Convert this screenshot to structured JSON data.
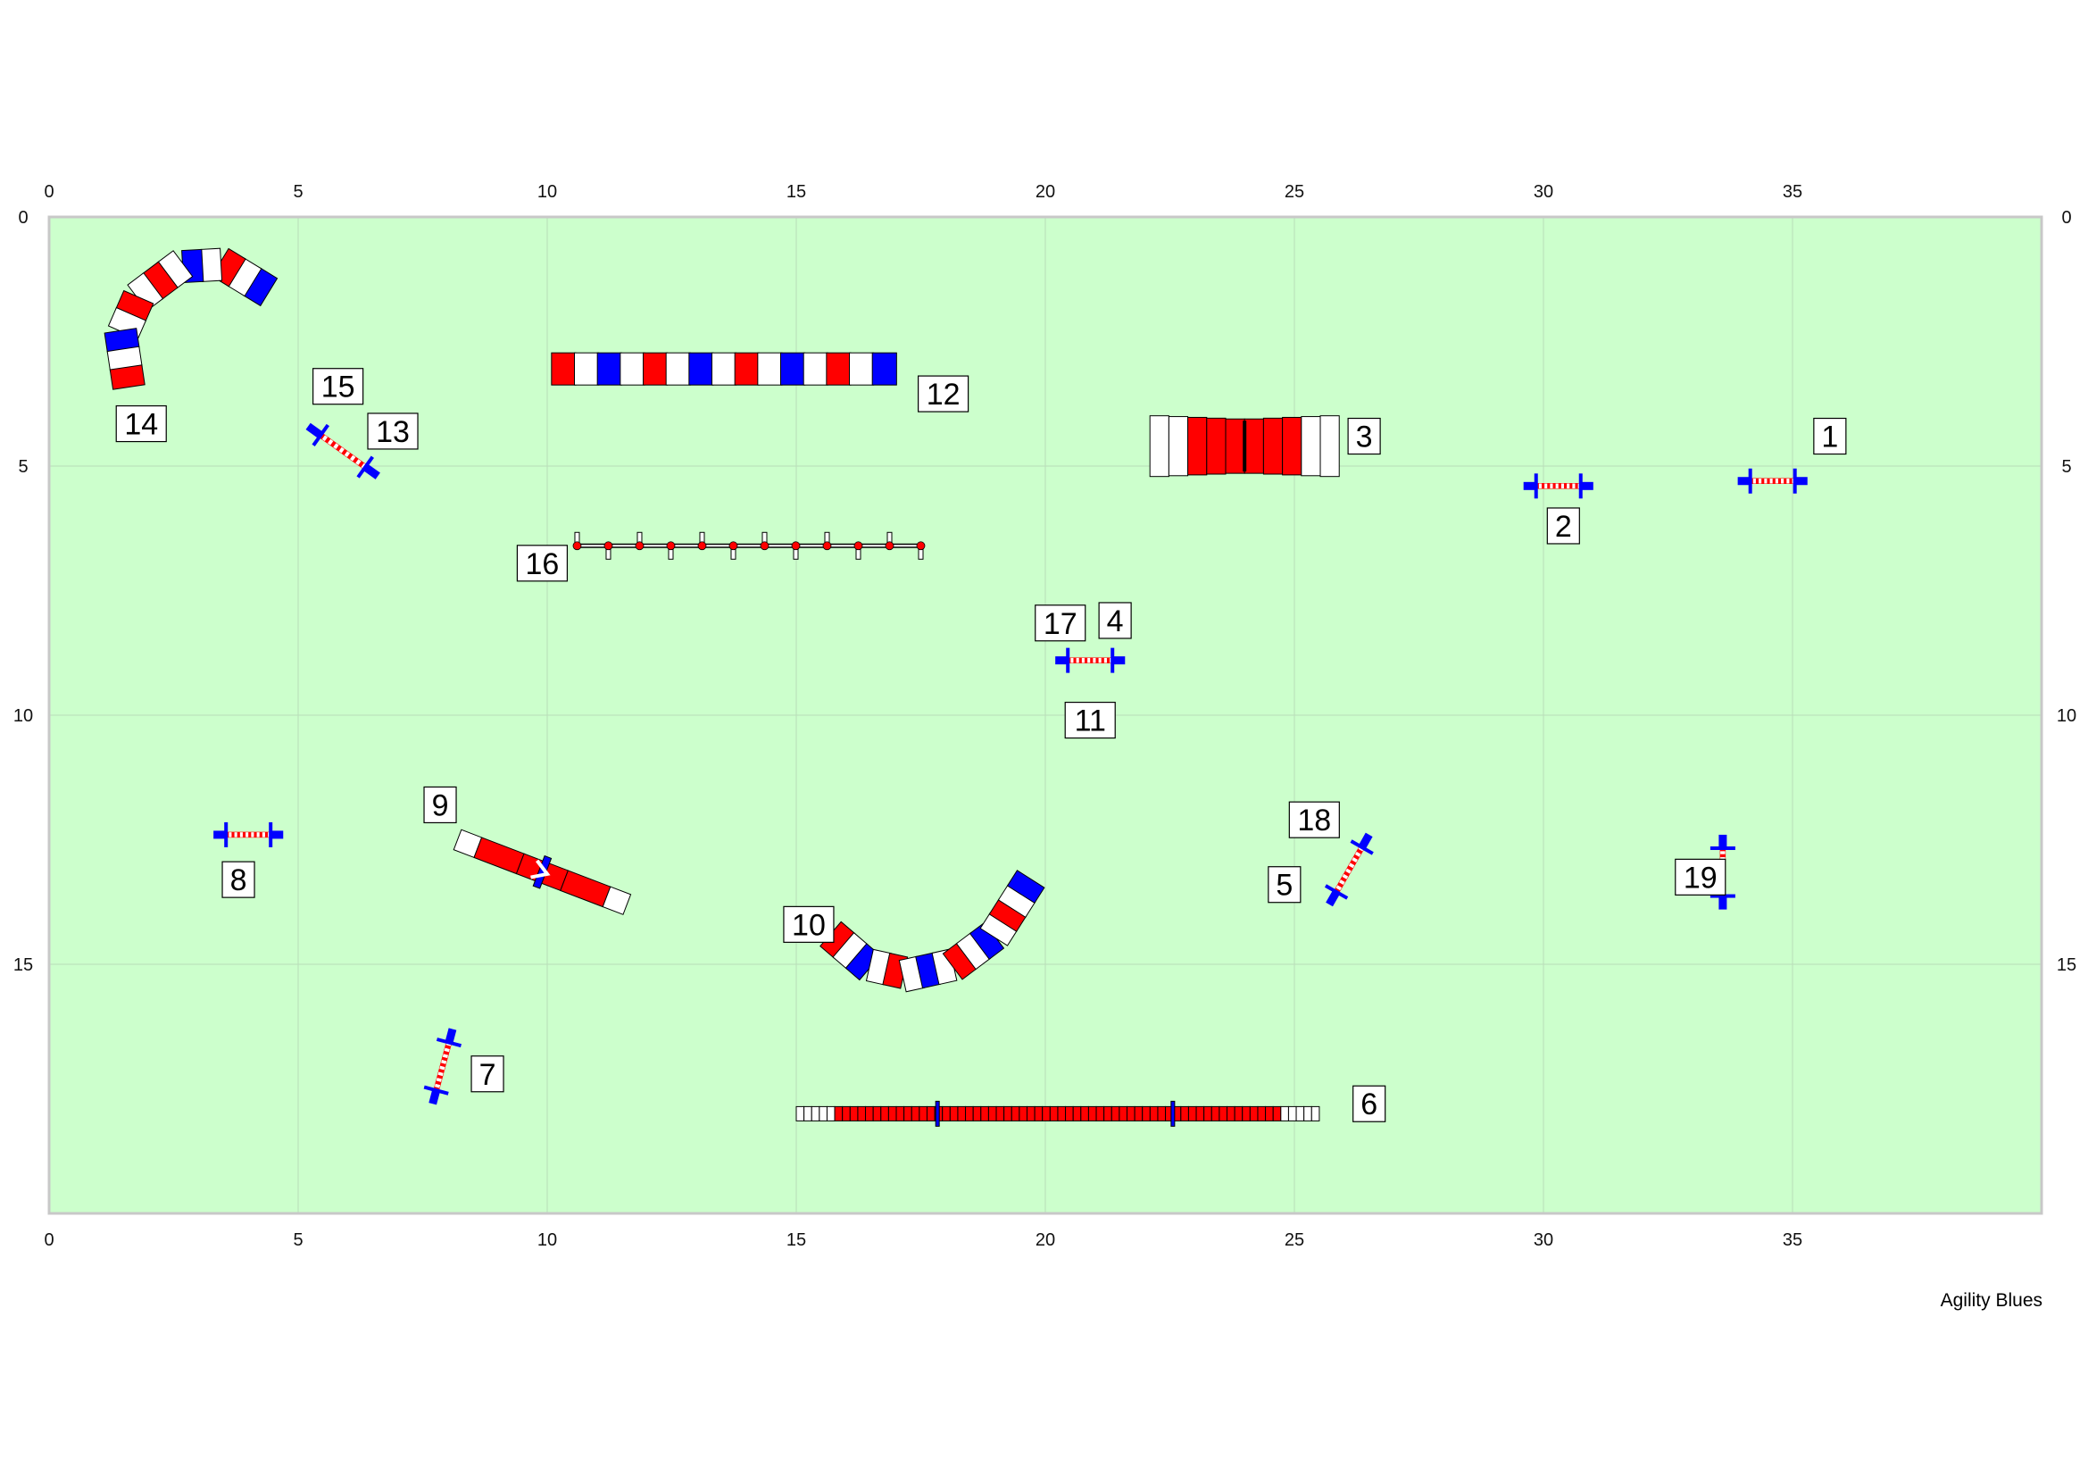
{
  "field": {
    "x_range": [
      0,
      40
    ],
    "y_range": [
      0,
      20
    ],
    "x_ticks": [
      0,
      5,
      10,
      15,
      20,
      25,
      30,
      35
    ],
    "y_ticks": [
      0,
      5,
      10,
      15
    ],
    "colors": {
      "field": "#ccffcc",
      "border": "#c8c8c8",
      "grid": "#b9dcb9",
      "red": "#ff0000",
      "blue": "#0000ff",
      "white": "#ffffff"
    }
  },
  "credit": "Agility Blues",
  "obstacles": [
    {
      "kind": "tunnel",
      "name": "tunnel-14",
      "path": [
        [
          4.4,
          1.5
        ],
        [
          3.5,
          0.95
        ],
        [
          2.6,
          1.0
        ],
        [
          1.8,
          1.6
        ],
        [
          1.45,
          2.4
        ],
        [
          1.6,
          3.4
        ]
      ],
      "colors": [
        "blue",
        "white",
        "red",
        "white",
        "blue",
        "white",
        "red",
        "white",
        "red",
        "white",
        "blue",
        "white",
        "red"
      ]
    },
    {
      "kind": "tunnel",
      "name": "tunnel-12",
      "path": [
        [
          10.1,
          3.05
        ],
        [
          17.0,
          3.05
        ]
      ],
      "colors": [
        "red",
        "white",
        "blue",
        "white",
        "red",
        "white",
        "blue",
        "white",
        "red",
        "white",
        "blue",
        "white",
        "red",
        "white",
        "blue"
      ]
    },
    {
      "kind": "tunnel",
      "name": "tunnel-10",
      "path": [
        [
          15.7,
          14.4
        ],
        [
          16.4,
          15.0
        ],
        [
          17.3,
          15.2
        ],
        [
          18.2,
          15.0
        ],
        [
          19.0,
          14.4
        ],
        [
          19.7,
          13.3
        ]
      ],
      "colors": [
        "red",
        "white",
        "blue",
        "white",
        "red",
        "white",
        "blue",
        "white",
        "red",
        "white",
        "blue",
        "white",
        "red",
        "white",
        "blue"
      ]
    },
    {
      "kind": "dogwalk",
      "name": "dogwalk-6",
      "path": [
        [
          15.0,
          18.0
        ],
        [
          25.5,
          18.0
        ]
      ],
      "blue_marks": [
        0.27,
        0.72
      ]
    },
    {
      "kind": "seesaw",
      "name": "seesaw-9",
      "path": [
        [
          8.2,
          12.5
        ],
        [
          11.6,
          13.8
        ]
      ]
    },
    {
      "kind": "aframe",
      "name": "aframe-3",
      "path": [
        [
          22.1,
          4.6
        ],
        [
          25.9,
          4.6
        ]
      ]
    },
    {
      "kind": "weave",
      "name": "weave-16",
      "path": [
        [
          10.6,
          6.6
        ],
        [
          17.5,
          6.6
        ]
      ],
      "poles": 12
    },
    {
      "kind": "jump",
      "name": "jump-1",
      "path": [
        [
          33.9,
          5.3
        ],
        [
          35.3,
          5.3
        ]
      ]
    },
    {
      "kind": "jump",
      "name": "jump-2",
      "path": [
        [
          29.6,
          5.4
        ],
        [
          31.0,
          5.4
        ]
      ]
    },
    {
      "kind": "jump",
      "name": "jump-13-15",
      "path": [
        [
          5.2,
          4.2
        ],
        [
          6.6,
          5.2
        ]
      ]
    },
    {
      "kind": "jump",
      "name": "jump-4-11-17",
      "path": [
        [
          20.2,
          8.9
        ],
        [
          21.6,
          8.9
        ]
      ]
    },
    {
      "kind": "jump",
      "name": "jump-8",
      "path": [
        [
          3.3,
          12.4
        ],
        [
          4.7,
          12.4
        ]
      ]
    },
    {
      "kind": "jump",
      "name": "jump-5-18",
      "path": [
        [
          25.7,
          13.8
        ],
        [
          26.5,
          12.4
        ]
      ]
    },
    {
      "kind": "jump",
      "name": "jump-19",
      "path": [
        [
          33.6,
          12.4
        ],
        [
          33.6,
          13.9
        ]
      ]
    },
    {
      "kind": "jump",
      "name": "jump-7",
      "path": [
        [
          7.7,
          17.8
        ],
        [
          8.1,
          16.3
        ]
      ]
    }
  ],
  "numbers": [
    {
      "label": "1",
      "x": 35.75,
      "y": 4.4
    },
    {
      "label": "2",
      "x": 30.4,
      "y": 6.2
    },
    {
      "label": "3",
      "x": 26.4,
      "y": 4.4
    },
    {
      "label": "4",
      "x": 21.4,
      "y": 8.1
    },
    {
      "label": "5",
      "x": 24.8,
      "y": 13.4
    },
    {
      "label": "6",
      "x": 26.5,
      "y": 17.8
    },
    {
      "label": "7",
      "x": 8.8,
      "y": 17.2
    },
    {
      "label": "8",
      "x": 3.8,
      "y": 13.3
    },
    {
      "label": "9",
      "x": 7.85,
      "y": 11.8
    },
    {
      "label": "10",
      "x": 15.25,
      "y": 14.2
    },
    {
      "label": "11",
      "x": 20.9,
      "y": 10.1
    },
    {
      "label": "12",
      "x": 17.95,
      "y": 3.55
    },
    {
      "label": "13",
      "x": 6.9,
      "y": 4.3
    },
    {
      "label": "14",
      "x": 1.85,
      "y": 4.15
    },
    {
      "label": "15",
      "x": 5.8,
      "y": 3.4
    },
    {
      "label": "16",
      "x": 9.9,
      "y": 6.95
    },
    {
      "label": "17",
      "x": 20.3,
      "y": 8.15
    },
    {
      "label": "18",
      "x": 25.4,
      "y": 12.1
    },
    {
      "label": "19",
      "x": 33.15,
      "y": 13.25
    }
  ]
}
